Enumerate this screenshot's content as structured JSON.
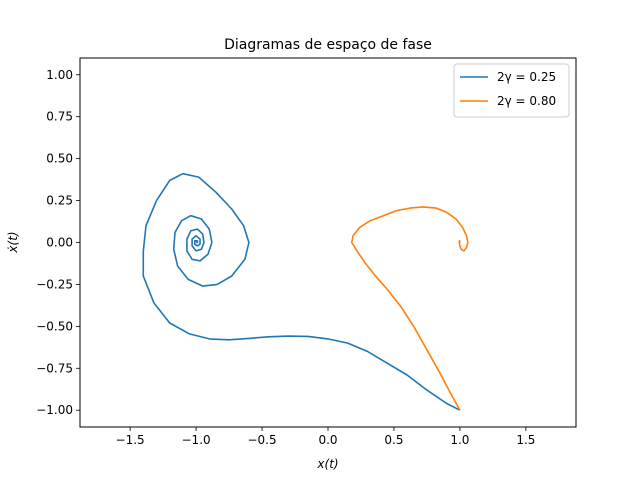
{
  "chart_data": {
    "type": "line",
    "title": "Diagramas de espaço de fase",
    "xlabel": "x(t)",
    "ylabel": "ẋ(t)",
    "xlim": [
      -1.88,
      1.88
    ],
    "ylim": [
      -1.1,
      1.1
    ],
    "xticks": [
      -1.5,
      -1.0,
      -0.5,
      0.0,
      0.5,
      1.0,
      1.5
    ],
    "xtick_labels": [
      "−1.5",
      "−1.0",
      "−0.5",
      "0.0",
      "0.5",
      "1.0",
      "1.5"
    ],
    "yticks": [
      1.0,
      0.75,
      0.5,
      0.25,
      0.0,
      -0.25,
      -0.5,
      -0.75,
      -1.0
    ],
    "ytick_labels": [
      "1.00",
      "0.75",
      "0.50",
      "0.25",
      "0.00",
      "−0.25",
      "−0.50",
      "−0.75",
      "−1.00"
    ],
    "grid": false,
    "legend_position": "top-right",
    "series": [
      {
        "name": "2γ = 0.25",
        "color": "#1f77b4",
        "points": [
          [
            1.0,
            -1.0
          ],
          [
            0.9,
            -0.96
          ],
          [
            0.75,
            -0.88
          ],
          [
            0.6,
            -0.79
          ],
          [
            0.45,
            -0.72
          ],
          [
            0.3,
            -0.65
          ],
          [
            0.15,
            -0.6
          ],
          [
            0.0,
            -0.575
          ],
          [
            -0.15,
            -0.56
          ],
          [
            -0.3,
            -0.558
          ],
          [
            -0.45,
            -0.562
          ],
          [
            -0.6,
            -0.572
          ],
          [
            -0.75,
            -0.58
          ],
          [
            -0.9,
            -0.575
          ],
          [
            -1.05,
            -0.545
          ],
          [
            -1.2,
            -0.48
          ],
          [
            -1.32,
            -0.36
          ],
          [
            -1.4,
            -0.2
          ],
          [
            -1.4,
            -0.05
          ],
          [
            -1.38,
            0.1
          ],
          [
            -1.3,
            0.25
          ],
          [
            -1.2,
            0.37
          ],
          [
            -1.1,
            0.41
          ],
          [
            -0.98,
            0.39
          ],
          [
            -0.85,
            0.3
          ],
          [
            -0.73,
            0.2
          ],
          [
            -0.64,
            0.1
          ],
          [
            -0.6,
            0.0
          ],
          [
            -0.63,
            -0.1
          ],
          [
            -0.73,
            -0.2
          ],
          [
            -0.84,
            -0.25
          ],
          [
            -0.95,
            -0.26
          ],
          [
            -1.06,
            -0.22
          ],
          [
            -1.14,
            -0.14
          ],
          [
            -1.17,
            -0.04
          ],
          [
            -1.16,
            0.06
          ],
          [
            -1.11,
            0.13
          ],
          [
            -1.04,
            0.16
          ],
          [
            -0.96,
            0.14
          ],
          [
            -0.9,
            0.08
          ],
          [
            -0.88,
            0.0
          ],
          [
            -0.91,
            -0.07
          ],
          [
            -0.97,
            -0.11
          ],
          [
            -1.03,
            -0.1
          ],
          [
            -1.07,
            -0.05
          ],
          [
            -1.07,
            0.02
          ],
          [
            -1.04,
            0.07
          ],
          [
            -0.99,
            0.08
          ],
          [
            -0.95,
            0.05
          ],
          [
            -0.94,
            0.0
          ],
          [
            -0.96,
            -0.04
          ],
          [
            -1.0,
            -0.05
          ],
          [
            -1.03,
            -0.02
          ],
          [
            -1.03,
            0.02
          ],
          [
            -1.0,
            0.04
          ],
          [
            -0.97,
            0.02
          ],
          [
            -0.97,
            -0.01
          ],
          [
            -0.99,
            -0.02
          ],
          [
            -1.01,
            -0.01
          ],
          [
            -1.01,
            0.01
          ],
          [
            -0.99,
            0.01
          ],
          [
            -0.99,
            0.0
          ],
          [
            -1.0,
            0.0
          ]
        ]
      },
      {
        "name": "2γ = 0.80",
        "color": "#ff7f0e",
        "points": [
          [
            1.0,
            -1.0
          ],
          [
            0.93,
            -0.9
          ],
          [
            0.85,
            -0.78
          ],
          [
            0.75,
            -0.64
          ],
          [
            0.65,
            -0.5
          ],
          [
            0.55,
            -0.38
          ],
          [
            0.45,
            -0.28
          ],
          [
            0.36,
            -0.2
          ],
          [
            0.28,
            -0.12
          ],
          [
            0.22,
            -0.05
          ],
          [
            0.18,
            0.0
          ],
          [
            0.19,
            0.04
          ],
          [
            0.24,
            0.09
          ],
          [
            0.32,
            0.13
          ],
          [
            0.42,
            0.16
          ],
          [
            0.52,
            0.19
          ],
          [
            0.62,
            0.205
          ],
          [
            0.72,
            0.212
          ],
          [
            0.82,
            0.205
          ],
          [
            0.9,
            0.18
          ],
          [
            0.97,
            0.14
          ],
          [
            1.02,
            0.09
          ],
          [
            1.05,
            0.04
          ],
          [
            1.06,
            0.0
          ],
          [
            1.05,
            -0.03
          ],
          [
            1.03,
            -0.05
          ],
          [
            1.01,
            -0.04
          ],
          [
            1.0,
            -0.02
          ],
          [
            0.995,
            0.0
          ],
          [
            0.997,
            0.01
          ],
          [
            1.0,
            0.005
          ],
          [
            1.0,
            0.0
          ]
        ]
      }
    ]
  }
}
